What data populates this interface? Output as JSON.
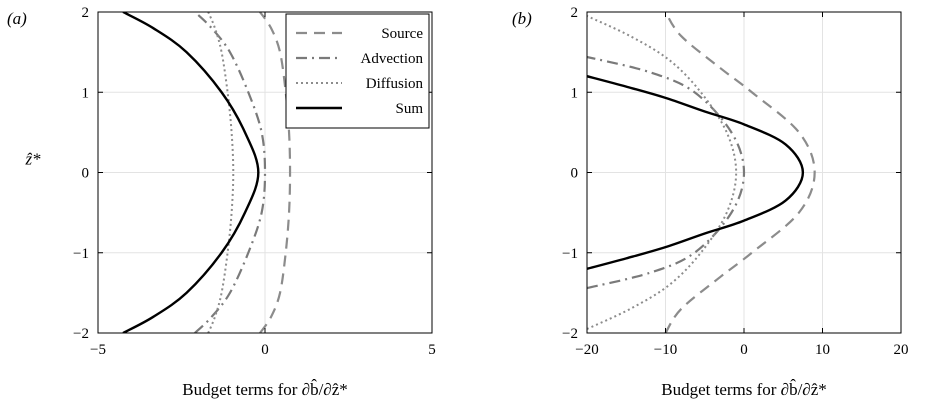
{
  "chart_data": [
    {
      "type": "line",
      "panel_label": "(a)",
      "xlabel": "Budget terms for ∂b̂/∂ẑ*",
      "ylabel": "ẑ*",
      "xlim": [
        -5,
        5
      ],
      "ylim": [
        -2,
        2
      ],
      "xticks": [
        -5,
        0,
        5
      ],
      "yticks": [
        -2,
        -1,
        0,
        1,
        2
      ],
      "grid": true,
      "legend": {
        "placement": "top-right",
        "entries": [
          "Source",
          "Advection",
          "Diffusion",
          "Sum"
        ]
      },
      "series": [
        {
          "name": "Source",
          "style": "dashed",
          "color": "#8c8c8c",
          "x": [
            0.75,
            0.72,
            0.62,
            0.45,
            0.18,
            -0.15
          ],
          "y": [
            0,
            0.5,
            1.0,
            1.5,
            1.8,
            2.0
          ]
        },
        {
          "name": "Advection",
          "style": "dashdot",
          "color": "#7a7a7a",
          "x": [
            0.0,
            -0.1,
            -0.5,
            -1.05,
            -1.6,
            -2.1
          ],
          "y": [
            0,
            0.5,
            1.0,
            1.5,
            1.8,
            2.0
          ]
        },
        {
          "name": "Diffusion",
          "style": "dotted",
          "color": "#8c8c8c",
          "x": [
            -0.95,
            -1.0,
            -1.12,
            -1.3,
            -1.5,
            -1.7
          ],
          "y": [
            0,
            0.5,
            1.0,
            1.5,
            1.8,
            2.0
          ]
        },
        {
          "name": "Sum",
          "style": "solid",
          "color": "#000000",
          "x": [
            -0.2,
            -0.6,
            -1.3,
            -2.35,
            -3.35,
            -4.25
          ],
          "y": [
            0,
            0.5,
            1.0,
            1.5,
            1.8,
            2.0
          ]
        }
      ]
    },
    {
      "type": "line",
      "panel_label": "(b)",
      "xlabel": "Budget terms for ∂b̂/∂ẑ*",
      "ylabel": "",
      "xlim": [
        -20,
        20
      ],
      "ylim": [
        -2,
        2
      ],
      "xticks": [
        -20,
        -10,
        0,
        10,
        20
      ],
      "yticks": [
        -2,
        -1,
        0,
        1,
        2
      ],
      "grid": true,
      "series": [
        {
          "name": "Source",
          "style": "dashed",
          "color": "#8c8c8c",
          "x": [
            9.0,
            7.0,
            1.0,
            -3.0,
            -8.0,
            -10.0
          ],
          "y": [
            0,
            0.5,
            1.0,
            1.3,
            1.7,
            2.0
          ]
        },
        {
          "name": "Advection",
          "style": "dashdot",
          "color": "#7a7a7a",
          "x": [
            0.0,
            -1.6,
            -6.3,
            -12.0,
            -20.0
          ],
          "y": [
            0,
            0.5,
            1.0,
            1.25,
            1.44
          ]
        },
        {
          "name": "Diffusion",
          "style": "dotted",
          "color": "#8c8c8c",
          "x": [
            -1.0,
            -2.2,
            -5.5,
            -9.5,
            -14.5,
            -20.0
          ],
          "y": [
            0,
            0.5,
            1.0,
            1.4,
            1.7,
            1.95
          ]
        },
        {
          "name": "Sum",
          "style": "solid",
          "color": "#000000",
          "x": [
            7.5,
            5.3,
            0.0,
            -5.0,
            -10.0,
            -15.0,
            -20.0
          ],
          "y": [
            0,
            0.35,
            0.6,
            0.76,
            0.93,
            1.07,
            1.2
          ]
        }
      ]
    }
  ]
}
